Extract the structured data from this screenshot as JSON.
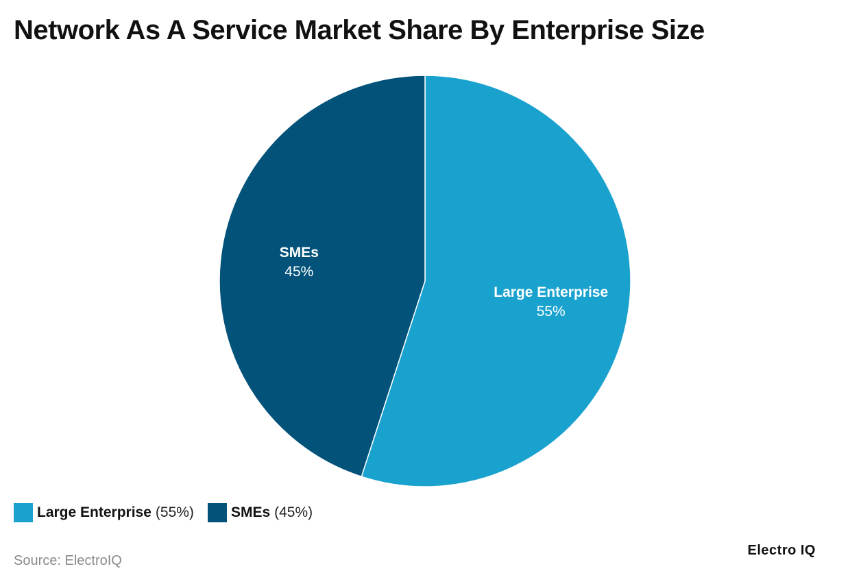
{
  "title": "Network As A Service Market Share By Enterprise Size",
  "source": "Source: ElectroIQ",
  "logo": "Electro IQ",
  "colors": {
    "large_enterprise": "#1aa2cf",
    "smes": "#02527a",
    "background": "#ffffff"
  },
  "legend": [
    {
      "name": "Large Enterprise",
      "pct": "(55%)"
    },
    {
      "name": "SMEs",
      "pct": "(45%)"
    }
  ],
  "chart_data": {
    "type": "pie",
    "title": "Network As A Service Market Share By Enterprise Size",
    "unit": "%",
    "slices": [
      {
        "label": "Large Enterprise",
        "value": 55,
        "value_label": "55%",
        "color": "#1aa2cf"
      },
      {
        "label": "SMEs",
        "value": 45,
        "value_label": "45%",
        "color": "#02527a"
      }
    ],
    "start_angle": "12 o'clock",
    "direction": "clockwise",
    "legend_position": "bottom-left"
  }
}
